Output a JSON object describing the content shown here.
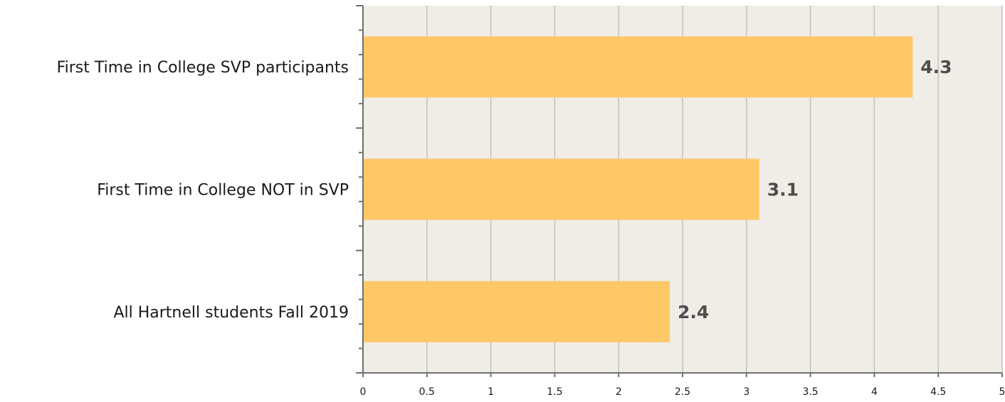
{
  "chart_data": {
    "type": "bar",
    "orientation": "horizontal",
    "title": "",
    "xlabel": "",
    "ylabel": "",
    "categories": [
      "First Time in College SVP participants",
      "First Time in College NOT in SVP",
      "All Hartnell students Fall 2019"
    ],
    "values": [
      4.3,
      3.1,
      2.4
    ],
    "data_labels": [
      "4.3",
      "3.1",
      "2.4"
    ],
    "xlim": [
      0,
      5
    ],
    "x_ticks": [
      "0",
      "0.5",
      "1",
      "1.5",
      "2",
      "2.5",
      "3",
      "3.5",
      "4",
      "4.5",
      "5"
    ],
    "grid": "vertical",
    "legend": "none",
    "colors": {
      "bar": "#FDC865",
      "plot_background": "#F0ECE6",
      "gridline": "#C2C2C2",
      "axis": "#707070"
    }
  }
}
